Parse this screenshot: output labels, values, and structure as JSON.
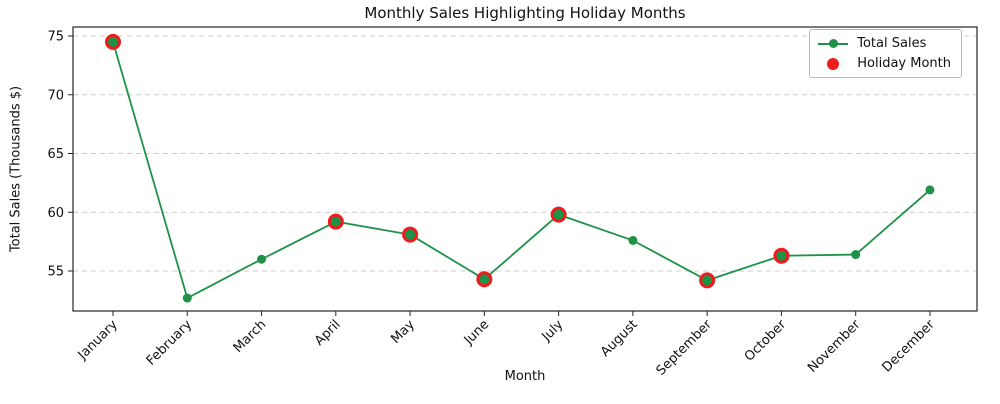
{
  "chart_data": {
    "type": "line",
    "title": "Monthly Sales Highlighting Holiday Months",
    "xlabel": "Month",
    "ylabel": "Total Sales (Thousands $)",
    "categories": [
      "January",
      "February",
      "March",
      "April",
      "May",
      "June",
      "July",
      "August",
      "September",
      "October",
      "November",
      "December"
    ],
    "series": [
      {
        "name": "Total Sales",
        "values": [
          74.5,
          52.7,
          56.0,
          59.2,
          58.1,
          54.3,
          59.8,
          57.6,
          54.2,
          56.3,
          56.4,
          61.9
        ],
        "color": "#1e9246",
        "marker": "circle"
      }
    ],
    "holiday_months": [
      "January",
      "April",
      "May",
      "June",
      "July",
      "September",
      "October"
    ],
    "holiday_color": "#ee1c1c",
    "yticks": [
      55,
      60,
      65,
      70,
      75
    ],
    "ylim": [
      51.6,
      75.8
    ],
    "grid": true,
    "grid_style": "dashed",
    "grid_color": "#cccccc",
    "x_tick_rotation": 45,
    "legend": {
      "position": "upper right",
      "entries": [
        "Total Sales",
        "Holiday Month"
      ]
    }
  }
}
